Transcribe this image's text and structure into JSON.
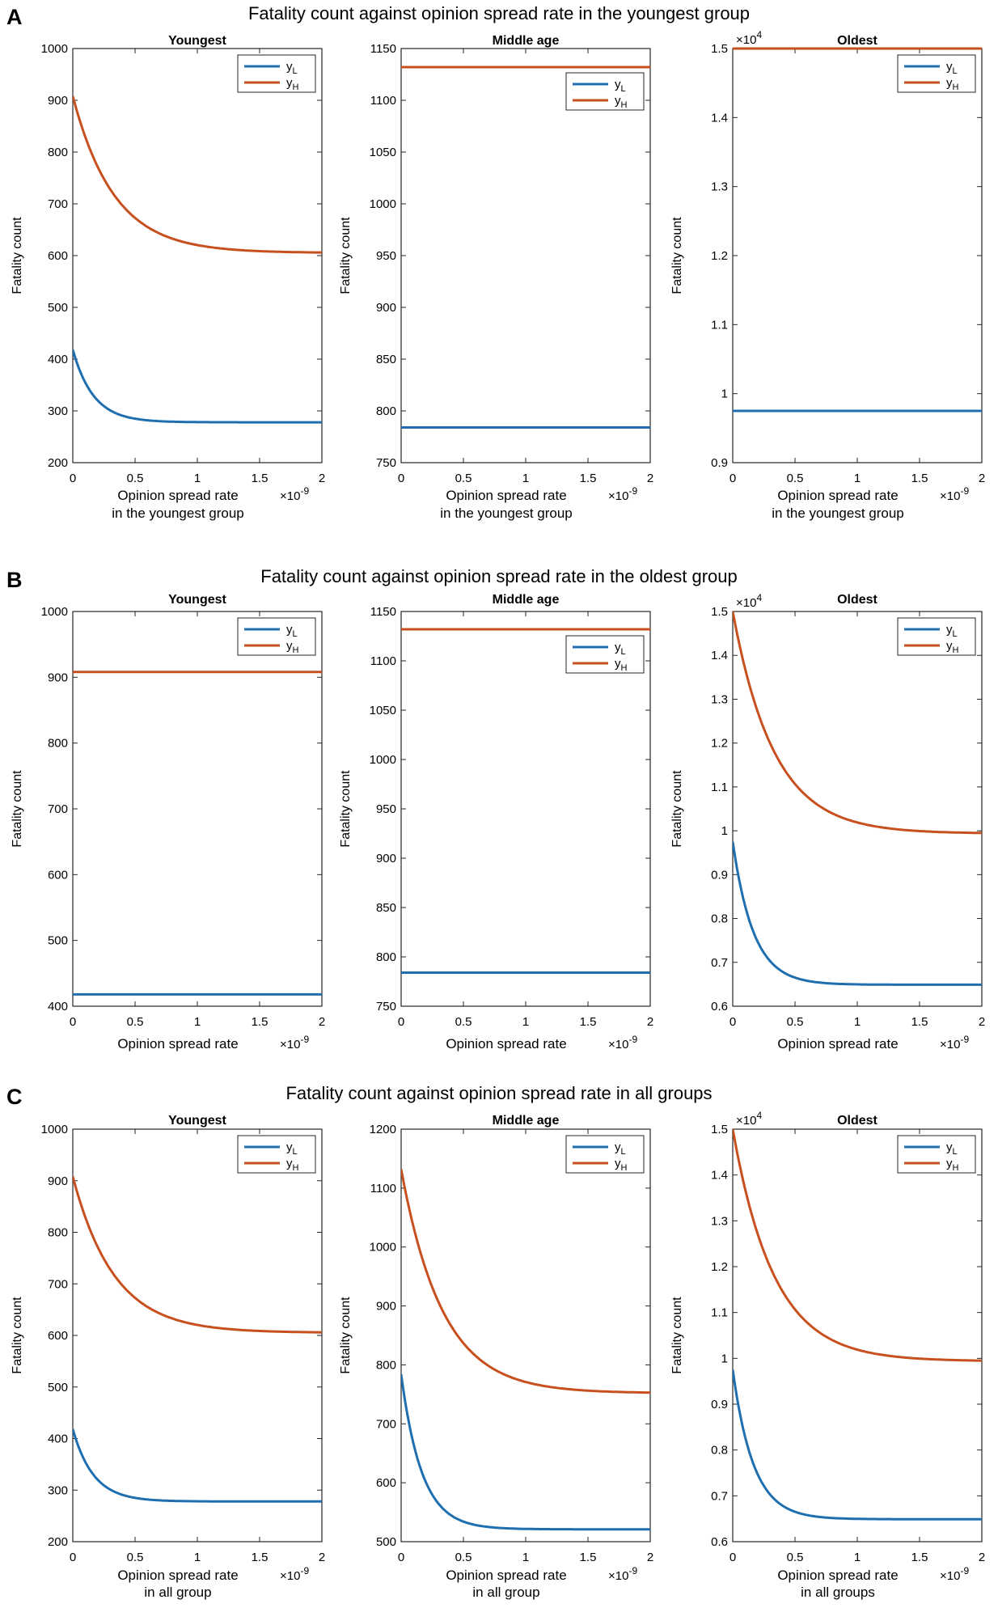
{
  "colors": {
    "yL": "#1f6fb0",
    "yH": "#c8501e",
    "axis": "#262626"
  },
  "legend": {
    "yL": "y",
    "yL_sub": "L",
    "yH": "y",
    "yH_sub": "H"
  },
  "chart_data": [
    {
      "panel_letter": "A",
      "panel_title": "Fatality count against opinion spread rate in the youngest group",
      "subplots": [
        {
          "type": "line",
          "title": "Youngest",
          "ylabel": "Fatality count",
          "xlabel": [
            "Opinion spread rate",
            "in the youngest group"
          ],
          "xexp": "×10",
          "xexp_pow": "-9",
          "xlim": [
            0,
            2
          ],
          "xticks": [
            0,
            0.5,
            1,
            1.5,
            2
          ],
          "xticklabels": [
            "0",
            "0.5",
            "1",
            "1.5",
            "2"
          ],
          "ylim": [
            200,
            1000
          ],
          "yticks": [
            200,
            300,
            400,
            500,
            600,
            700,
            800,
            900,
            1000
          ],
          "yticklabels": [
            "200",
            "300",
            "400",
            "500",
            "600",
            "700",
            "800",
            "900",
            "1000"
          ],
          "yexp": null,
          "yexp_pow": null,
          "legend_pos": "top-right",
          "series": [
            {
              "name": "yL",
              "start": 418,
              "end": 278,
              "decay": 6
            },
            {
              "name": "yH",
              "start": 908,
              "end": 606,
              "decay": 3
            }
          ]
        },
        {
          "type": "line",
          "title": "Middle age",
          "ylabel": "Fatality count",
          "xlabel": [
            "Opinion spread rate",
            "in the youngest group"
          ],
          "xexp": "×10",
          "xexp_pow": "-9",
          "xlim": [
            0,
            2
          ],
          "xticks": [
            0,
            0.5,
            1,
            1.5,
            2
          ],
          "xticklabels": [
            "0",
            "0.5",
            "1",
            "1.5",
            "2"
          ],
          "ylim": [
            750,
            1150
          ],
          "yticks": [
            750,
            800,
            850,
            900,
            950,
            1000,
            1050,
            1100,
            1150
          ],
          "yticklabels": [
            "750",
            "800",
            "850",
            "900",
            "950",
            "1000",
            "1050",
            "1100",
            "1150"
          ],
          "yexp": null,
          "yexp_pow": null,
          "legend_pos": "upper-right",
          "series": [
            {
              "name": "yL",
              "start": 784,
              "end": 784,
              "decay": 1
            },
            {
              "name": "yH",
              "start": 1132,
              "end": 1132,
              "decay": 1
            }
          ]
        },
        {
          "type": "line",
          "title": "Oldest",
          "ylabel": "Fatality count",
          "xlabel": [
            "Opinion spread rate",
            "in the youngest group"
          ],
          "xexp": "×10",
          "xexp_pow": "-9",
          "xlim": [
            0,
            2
          ],
          "xticks": [
            0,
            0.5,
            1,
            1.5,
            2
          ],
          "xticklabels": [
            "0",
            "0.5",
            "1",
            "1.5",
            "2"
          ],
          "ylim": [
            0.9,
            1.5
          ],
          "yticks": [
            0.9,
            1,
            1.1,
            1.2,
            1.3,
            1.4,
            1.5
          ],
          "yticklabels": [
            "0.9",
            "1",
            "1.1",
            "1.2",
            "1.3",
            "1.4",
            "1.5"
          ],
          "yexp": "×10",
          "yexp_pow": "4",
          "legend_pos": "top-right",
          "series": [
            {
              "name": "yL",
              "start": 0.975,
              "end": 0.975,
              "decay": 1
            },
            {
              "name": "yH",
              "start": 1.5,
              "end": 1.5,
              "decay": 1
            }
          ]
        }
      ]
    },
    {
      "panel_letter": "B",
      "panel_title": "Fatality count against opinion spread rate in the oldest group",
      "subplots": [
        {
          "type": "line",
          "title": "Youngest",
          "ylabel": "Fatality count",
          "xlabel": [
            "Opinion spread rate"
          ],
          "xexp": "×10",
          "xexp_pow": "-9",
          "xlim": [
            0,
            2
          ],
          "xticks": [
            0,
            0.5,
            1,
            1.5,
            2
          ],
          "xticklabels": [
            "0",
            "0.5",
            "1",
            "1.5",
            "2"
          ],
          "ylim": [
            400,
            1000
          ],
          "yticks": [
            400,
            500,
            600,
            700,
            800,
            900,
            1000
          ],
          "yticklabels": [
            "400",
            "500",
            "600",
            "700",
            "800",
            "900",
            "1000"
          ],
          "yexp": null,
          "yexp_pow": null,
          "legend_pos": "top-right",
          "series": [
            {
              "name": "yL",
              "start": 418,
              "end": 418,
              "decay": 1
            },
            {
              "name": "yH",
              "start": 908,
              "end": 908,
              "decay": 1
            }
          ]
        },
        {
          "type": "line",
          "title": "Middle age",
          "ylabel": "Fatality count",
          "xlabel": [
            "Opinion spread rate"
          ],
          "xexp": "×10",
          "xexp_pow": "-9",
          "xlim": [
            0,
            2
          ],
          "xticks": [
            0,
            0.5,
            1,
            1.5,
            2
          ],
          "xticklabels": [
            "0",
            "0.5",
            "1",
            "1.5",
            "2"
          ],
          "ylim": [
            750,
            1150
          ],
          "yticks": [
            750,
            800,
            850,
            900,
            950,
            1000,
            1050,
            1100,
            1150
          ],
          "yticklabels": [
            "750",
            "800",
            "850",
            "900",
            "950",
            "1000",
            "1050",
            "1100",
            "1150"
          ],
          "yexp": null,
          "yexp_pow": null,
          "legend_pos": "upper-right",
          "series": [
            {
              "name": "yL",
              "start": 784,
              "end": 784,
              "decay": 1
            },
            {
              "name": "yH",
              "start": 1132,
              "end": 1132,
              "decay": 1
            }
          ]
        },
        {
          "type": "line",
          "title": "Oldest",
          "ylabel": "Fatality count",
          "xlabel": [
            "Opinion spread rate"
          ],
          "xexp": "×10",
          "xexp_pow": "-9",
          "xlim": [
            0,
            2
          ],
          "xticks": [
            0,
            0.5,
            1,
            1.5,
            2
          ],
          "xticklabels": [
            "0",
            "0.5",
            "1",
            "1.5",
            "2"
          ],
          "ylim": [
            0.6,
            1.5
          ],
          "yticks": [
            0.6,
            0.7,
            0.8,
            0.9,
            1,
            1.1,
            1.2,
            1.3,
            1.4,
            1.5
          ],
          "yticklabels": [
            "0.6",
            "0.7",
            "0.8",
            "0.9",
            "1",
            "1.1",
            "1.2",
            "1.3",
            "1.4",
            "1.5"
          ],
          "yexp": "×10",
          "yexp_pow": "4",
          "legend_pos": "top-right",
          "series": [
            {
              "name": "yL",
              "start": 0.975,
              "end": 0.649,
              "decay": 6
            },
            {
              "name": "yH",
              "start": 1.5,
              "end": 0.995,
              "decay": 3
            }
          ]
        }
      ]
    },
    {
      "panel_letter": "C",
      "panel_title": "Fatality count against opinion spread rate in all groups",
      "subplots": [
        {
          "type": "line",
          "title": "Youngest",
          "ylabel": "Fatality count",
          "xlabel": [
            "Opinion spread rate",
            "in all group"
          ],
          "xexp": "×10",
          "xexp_pow": "-9",
          "xlim": [
            0,
            2
          ],
          "xticks": [
            0,
            0.5,
            1,
            1.5,
            2
          ],
          "xticklabels": [
            "0",
            "0.5",
            "1",
            "1.5",
            "2"
          ],
          "ylim": [
            200,
            1000
          ],
          "yticks": [
            200,
            300,
            400,
            500,
            600,
            700,
            800,
            900,
            1000
          ],
          "yticklabels": [
            "200",
            "300",
            "400",
            "500",
            "600",
            "700",
            "800",
            "900",
            "1000"
          ],
          "yexp": null,
          "yexp_pow": null,
          "legend_pos": "top-right",
          "series": [
            {
              "name": "yL",
              "start": 418,
              "end": 278,
              "decay": 6
            },
            {
              "name": "yH",
              "start": 908,
              "end": 606,
              "decay": 3
            }
          ]
        },
        {
          "type": "line",
          "title": "Middle age",
          "ylabel": "Fatality count",
          "xlabel": [
            "Opinion spread rate",
            "in all group"
          ],
          "xexp": "×10",
          "xexp_pow": "-9",
          "xlim": [
            0,
            2
          ],
          "xticks": [
            0,
            0.5,
            1,
            1.5,
            2
          ],
          "xticklabels": [
            "0",
            "0.5",
            "1",
            "1.5",
            "2"
          ],
          "ylim": [
            500,
            1200
          ],
          "yticks": [
            500,
            600,
            700,
            800,
            900,
            1000,
            1100,
            1200
          ],
          "yticklabels": [
            "500",
            "600",
            "700",
            "800",
            "900",
            "1000",
            "1100",
            "1200"
          ],
          "yexp": null,
          "yexp_pow": null,
          "legend_pos": "top-right",
          "series": [
            {
              "name": "yL",
              "start": 784,
              "end": 521,
              "decay": 6
            },
            {
              "name": "yH",
              "start": 1132,
              "end": 753,
              "decay": 3
            }
          ]
        },
        {
          "type": "line",
          "title": "Oldest",
          "ylabel": "Fatality count",
          "xlabel": [
            "Opinion spread rate",
            "in all groups"
          ],
          "xexp": "×10",
          "xexp_pow": "-9",
          "xlim": [
            0,
            2
          ],
          "xticks": [
            0,
            0.5,
            1,
            1.5,
            2
          ],
          "xticklabels": [
            "0",
            "0.5",
            "1",
            "1.5",
            "2"
          ],
          "ylim": [
            0.6,
            1.5
          ],
          "yticks": [
            0.6,
            0.7,
            0.8,
            0.9,
            1,
            1.1,
            1.2,
            1.3,
            1.4,
            1.5
          ],
          "yticklabels": [
            "0.6",
            "0.7",
            "0.8",
            "0.9",
            "1",
            "1.1",
            "1.2",
            "1.3",
            "1.4",
            "1.5"
          ],
          "yexp": "×10",
          "yexp_pow": "4",
          "legend_pos": "top-right",
          "series": [
            {
              "name": "yL",
              "start": 0.975,
              "end": 0.649,
              "decay": 6
            },
            {
              "name": "yH",
              "start": 1.5,
              "end": 0.995,
              "decay": 3
            }
          ]
        }
      ]
    }
  ]
}
